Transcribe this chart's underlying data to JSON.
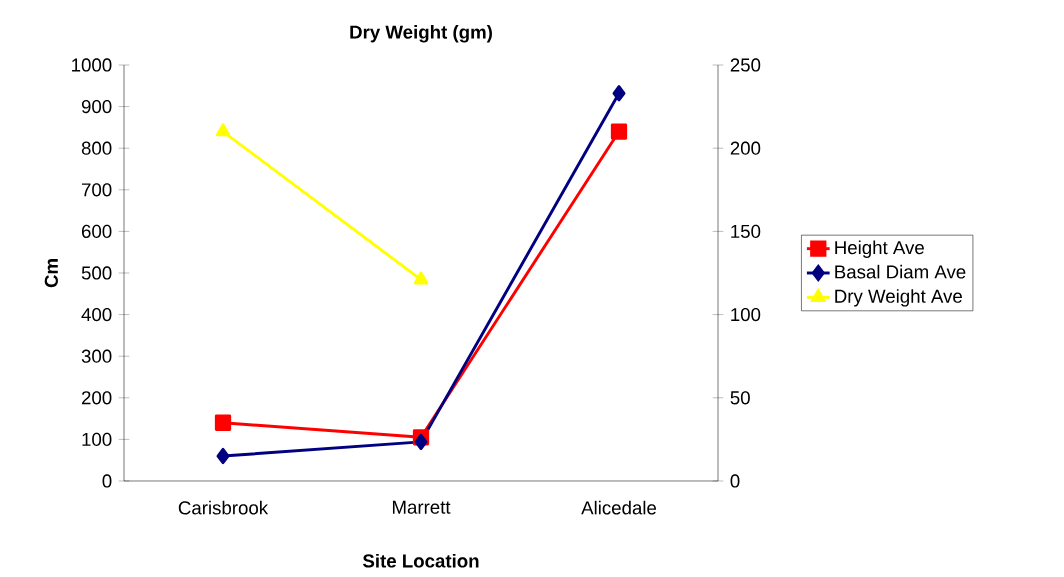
{
  "chart_data": {
    "type": "line",
    "title": "Dry Weight (gm)",
    "xlabel": "Site Location",
    "ylabel": "Cm",
    "categories": [
      "Carisbrook",
      "Marrett",
      "Alicedale"
    ],
    "series": [
      {
        "name": "Height Ave",
        "color": "#ff0000",
        "marker": "square",
        "values": [
          140,
          105,
          840
        ]
      },
      {
        "name": "Basal Diam Ave",
        "color": "#000080",
        "marker": "diamond",
        "values": [
          60,
          94,
          932
        ]
      },
      {
        "name": "Dry Weight Ave",
        "color": "#ffff00",
        "marker": "triangle",
        "axis": "y2",
        "values": [
          210,
          121,
          null
        ]
      }
    ],
    "ylim": [
      0,
      1000
    ],
    "yticks": [
      0,
      100,
      200,
      300,
      400,
      500,
      600,
      700,
      800,
      900,
      1000
    ],
    "y2lim": [
      0,
      250
    ],
    "y2ticks": [
      0,
      50,
      100,
      150,
      200,
      250
    ],
    "grid": false,
    "legend": "right",
    "line_style": "solid"
  }
}
